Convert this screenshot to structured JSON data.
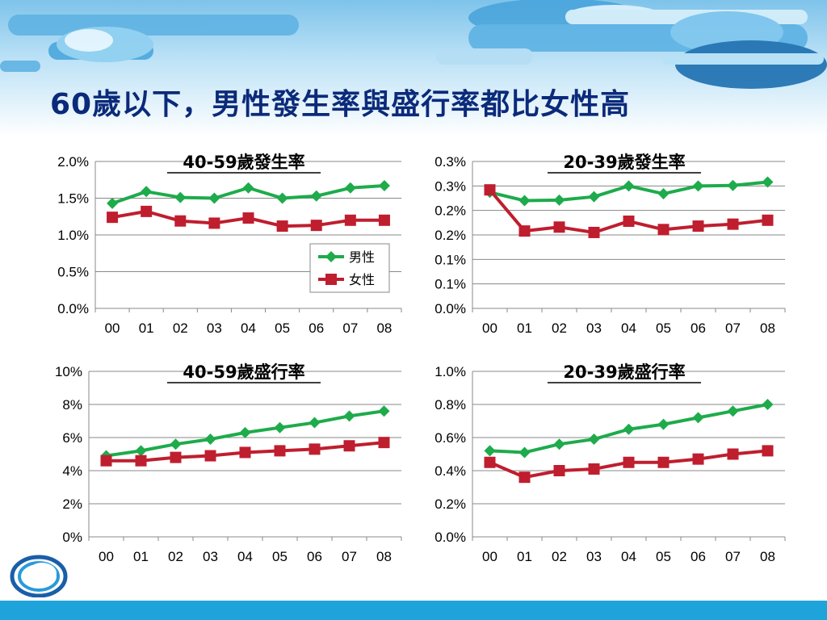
{
  "slide": {
    "title": "60歲以下，男性發生率與盛行率都比女性高"
  },
  "legend": {
    "male": "男性",
    "female": "女性"
  },
  "colors": {
    "male": "#1eab4b",
    "female": "#bf1e2e",
    "accent": "#0b2a7a",
    "bar": "#1ea3db"
  },
  "chart_data": [
    {
      "type": "line",
      "title": "40-59歲發生率",
      "categories": [
        "00",
        "01",
        "02",
        "03",
        "04",
        "05",
        "06",
        "07",
        "08"
      ],
      "y_ticks": [
        "0.0%",
        "0.5%",
        "1.0%",
        "1.5%",
        "2.0%"
      ],
      "ylim": [
        0,
        2.0
      ],
      "series": [
        {
          "name": "男性",
          "values": [
            1.43,
            1.59,
            1.51,
            1.5,
            1.64,
            1.5,
            1.53,
            1.64,
            1.67
          ]
        },
        {
          "name": "女性",
          "values": [
            1.24,
            1.32,
            1.19,
            1.16,
            1.23,
            1.12,
            1.13,
            1.2,
            1.2
          ]
        }
      ],
      "legend": true
    },
    {
      "type": "line",
      "title": "20-39歲發生率",
      "categories": [
        "00",
        "01",
        "02",
        "03",
        "04",
        "05",
        "06",
        "07",
        "08"
      ],
      "y_ticks": [
        "0.0%",
        "0.1%",
        "0.1%",
        "0.2%",
        "0.2%",
        "0.3%",
        "0.3%"
      ],
      "ylim": [
        0,
        0.3
      ],
      "series": [
        {
          "name": "男性",
          "values": [
            0.237,
            0.22,
            0.221,
            0.228,
            0.25,
            0.234,
            0.25,
            0.251,
            0.258
          ]
        },
        {
          "name": "女性",
          "values": [
            0.242,
            0.158,
            0.166,
            0.155,
            0.178,
            0.161,
            0.168,
            0.172,
            0.18
          ]
        }
      ],
      "legend": false
    },
    {
      "type": "line",
      "title": "40-59歲盛行率",
      "categories": [
        "00",
        "01",
        "02",
        "03",
        "04",
        "05",
        "06",
        "07",
        "08"
      ],
      "y_ticks": [
        "0%",
        "2%",
        "4%",
        "6%",
        "8%",
        "10%"
      ],
      "ylim": [
        0,
        10
      ],
      "series": [
        {
          "name": "男性",
          "values": [
            4.9,
            5.2,
            5.6,
            5.9,
            6.3,
            6.6,
            6.9,
            7.3,
            7.6
          ]
        },
        {
          "name": "女性",
          "values": [
            4.6,
            4.6,
            4.8,
            4.9,
            5.1,
            5.2,
            5.3,
            5.5,
            5.7
          ]
        }
      ],
      "legend": false
    },
    {
      "type": "line",
      "title": "20-39歲盛行率",
      "categories": [
        "00",
        "01",
        "02",
        "03",
        "04",
        "05",
        "06",
        "07",
        "08"
      ],
      "y_ticks": [
        "0.0%",
        "0.2%",
        "0.4%",
        "0.6%",
        "0.8%",
        "1.0%"
      ],
      "ylim": [
        0,
        1.0
      ],
      "series": [
        {
          "name": "男性",
          "values": [
            0.52,
            0.51,
            0.56,
            0.59,
            0.65,
            0.68,
            0.72,
            0.76,
            0.8
          ]
        },
        {
          "name": "女性",
          "values": [
            0.45,
            0.36,
            0.4,
            0.41,
            0.45,
            0.45,
            0.47,
            0.5,
            0.52
          ]
        }
      ],
      "legend": false
    }
  ]
}
